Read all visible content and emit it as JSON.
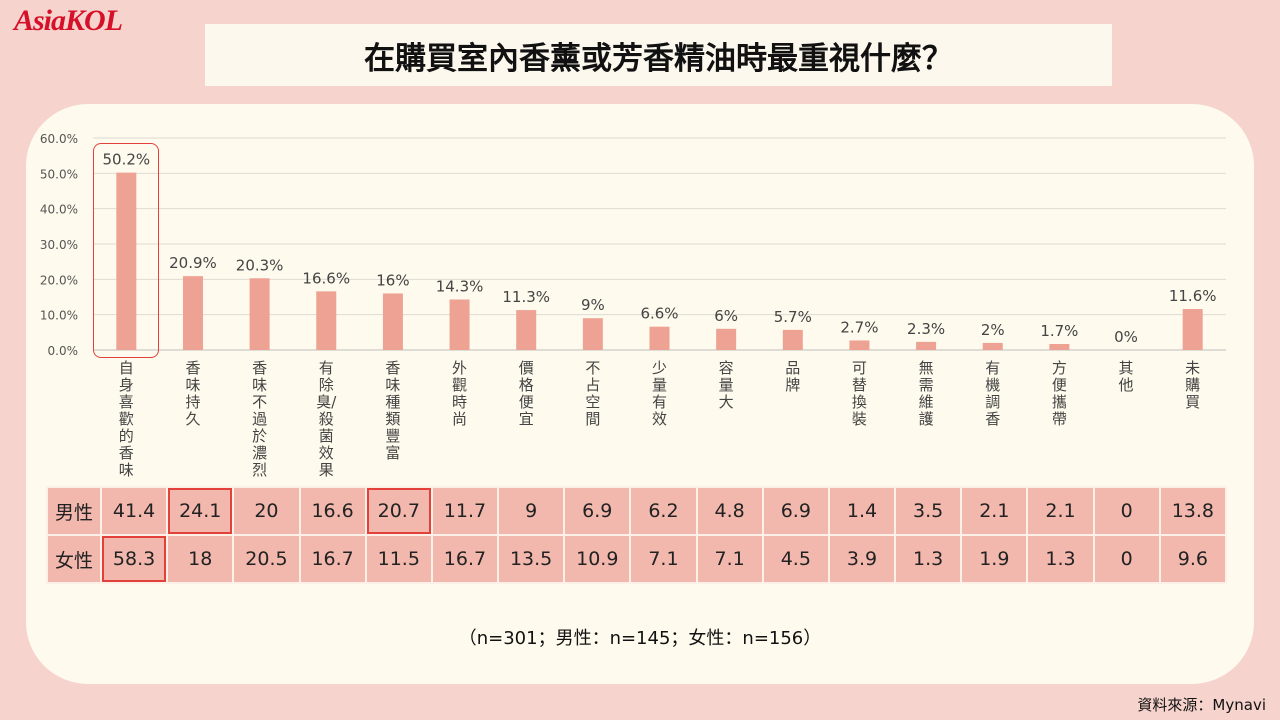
{
  "brand": {
    "logo_text": "AsiaKOL"
  },
  "header": {
    "title": "在購買室內香薰或芳香精油時最重視什麼？"
  },
  "chart_data": {
    "type": "bar",
    "ylim": [
      0,
      60
    ],
    "yticks": [
      "60.0%",
      "50.0%",
      "40.0%",
      "30.0%",
      "20.0%",
      "10.0%",
      "0.0%"
    ],
    "ytick_values": [
      60,
      50,
      40,
      30,
      20,
      10,
      0
    ],
    "categories": [
      "自身喜歡的香味",
      "香味持久",
      "香味不過於濃烈",
      "有除臭/殺菌效果",
      "香味種類豐富",
      "外觀時尚",
      "價格便宜",
      "不占空間",
      "少量有效",
      "容量大",
      "品牌",
      "可替換裝",
      "無需維護",
      "有機調香",
      "方便攜帶",
      "其他",
      "未購買"
    ],
    "values": [
      50.2,
      20.9,
      20.3,
      16.6,
      16,
      14.3,
      11.3,
      9,
      6.6,
      6,
      5.7,
      2.7,
      2.3,
      2,
      1.7,
      0,
      11.6
    ],
    "value_labels": [
      "50.2%",
      "20.9%",
      "20.3%",
      "16.6%",
      "16%",
      "14.3%",
      "11.3%",
      "9%",
      "6.6%",
      "6%",
      "5.7%",
      "2.7%",
      "2.3%",
      "2%",
      "1.7%",
      "0%",
      "11.6%"
    ],
    "bar_color": "#eea293",
    "grid": true,
    "highlight_color": "#e3403a"
  },
  "table": {
    "rows": [
      {
        "label": "男性",
        "values": [
          "41.4",
          "24.1",
          "20",
          "16.6",
          "20.7",
          "11.7",
          "9",
          "6.9",
          "6.2",
          "4.8",
          "6.9",
          "1.4",
          "3.5",
          "2.1",
          "2.1",
          "0",
          "13.8"
        ],
        "highlight": [
          1,
          4
        ]
      },
      {
        "label": "女性",
        "values": [
          "58.3",
          "18",
          "20.5",
          "16.7",
          "11.5",
          "16.7",
          "13.5",
          "10.9",
          "7.1",
          "7.1",
          "4.5",
          "3.9",
          "1.3",
          "1.9",
          "1.3",
          "0",
          "9.6"
        ],
        "highlight": [
          0
        ]
      }
    ]
  },
  "footer": {
    "sample_note": "（n=301；男性：n=145；女性：n=156）",
    "source": "資料來源：Mynavi"
  }
}
